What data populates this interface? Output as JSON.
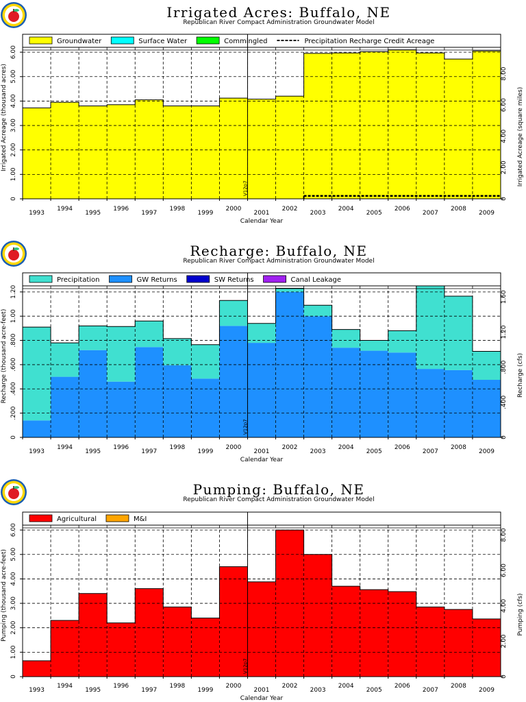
{
  "chart_data": [
    {
      "type": "bar",
      "title": "Irrigated Acres: Buffalo, NE",
      "subtitle": "Republican River Compact Administration Groundwater Model",
      "categories": [
        "1993",
        "1994",
        "1995",
        "1996",
        "1997",
        "1998",
        "1999",
        "2000",
        "2001",
        "2002",
        "2003",
        "2004",
        "2005",
        "2006",
        "2007",
        "2008",
        "2009"
      ],
      "xlabel": "Calendar Year",
      "ylabel": "Irrigated Acreage (thousand acres)",
      "ylabel_right": "Irrigated Acreage (square miles)",
      "ylim": [
        0,
        6.2
      ],
      "yticks": [
        "0",
        "1.00",
        "2.00",
        "3.00",
        "4.00",
        "5.00",
        "6.00"
      ],
      "ylim_right": [
        0,
        9.69
      ],
      "yticks_right": [
        "0",
        "2.00",
        "4.00",
        "6.00",
        "8.00"
      ],
      "stacked": true,
      "annotation": {
        "text": "V12p7",
        "at_x": 2000.5
      },
      "legend": [
        "Groundwater",
        "Surface Water",
        "Commingled",
        "Precipitation Recharge Credit Acreage"
      ],
      "series": [
        {
          "name": "Groundwater",
          "color": "#ffff00",
          "values": [
            3.72,
            3.95,
            3.8,
            3.85,
            4.05,
            3.8,
            3.8,
            4.12,
            4.08,
            4.2,
            5.95,
            5.97,
            6.02,
            6.1,
            5.97,
            5.72,
            6.05
          ]
        },
        {
          "name": "Surface Water",
          "color": "#00ffff",
          "values": [
            0,
            0,
            0,
            0,
            0,
            0,
            0,
            0,
            0,
            0,
            0,
            0,
            0,
            0,
            0,
            0,
            0
          ]
        },
        {
          "name": "Commingled",
          "color": "#00ff00",
          "values": [
            0,
            0,
            0,
            0,
            0,
            0,
            0,
            0,
            0,
            0,
            0,
            0,
            0,
            0,
            0,
            0,
            0
          ]
        }
      ],
      "line_series": {
        "name": "Precipitation Recharge Credit Acreage",
        "values": [
          0,
          0,
          0,
          0,
          0,
          0,
          0,
          0,
          0,
          0,
          0.12,
          0.12,
          0.12,
          0.12,
          0.12,
          0.12,
          0.12
        ]
      }
    },
    {
      "type": "bar",
      "title": "Recharge: Buffalo, NE",
      "subtitle": "Republican River Compact Administration Groundwater Model",
      "categories": [
        "1993",
        "1994",
        "1995",
        "1996",
        "1997",
        "1998",
        "1999",
        "2000",
        "2001",
        "2002",
        "2003",
        "2004",
        "2005",
        "2006",
        "2007",
        "2008",
        "2009"
      ],
      "xlabel": "Calendar Year",
      "ylabel": "Recharge (thousand acre-feet)",
      "ylabel_right": "Recharge (cfs)",
      "ylim": [
        0,
        1.25
      ],
      "yticks": [
        "0",
        ".200",
        ".400",
        ".600",
        ".800",
        "1.00",
        "1.20"
      ],
      "ylim_right": [
        0,
        1.727
      ],
      "yticks_right": [
        "0",
        ".400",
        ".800",
        "1.20",
        "1.60"
      ],
      "stacked": true,
      "annotation": {
        "text": "V12p7",
        "at_x": 2000.5
      },
      "legend": [
        "Precipitation",
        "GW Returns",
        "SW Returns",
        "Canal Leakage"
      ],
      "series": [
        {
          "name": "GW Returns",
          "color": "#1e90ff",
          "values": [
            0.14,
            0.5,
            0.72,
            0.46,
            0.745,
            0.595,
            0.485,
            0.92,
            0.78,
            1.2,
            1.0,
            0.74,
            0.715,
            0.7,
            0.565,
            0.555,
            0.475
          ]
        },
        {
          "name": "SW Returns",
          "color": "#0000cd",
          "values": [
            0,
            0,
            0,
            0,
            0,
            0,
            0,
            0,
            0,
            0,
            0,
            0,
            0,
            0,
            0,
            0,
            0
          ]
        },
        {
          "name": "Canal Leakage",
          "color": "#a020f0",
          "values": [
            0,
            0,
            0,
            0,
            0,
            0,
            0,
            0,
            0,
            0,
            0,
            0,
            0,
            0,
            0,
            0,
            0
          ]
        },
        {
          "name": "Precipitation",
          "color": "#40e0d0",
          "values": [
            0.77,
            0.28,
            0.2,
            0.455,
            0.215,
            0.22,
            0.28,
            0.21,
            0.16,
            0.03,
            0.09,
            0.15,
            0.085,
            0.18,
            0.685,
            0.61,
            0.235
          ]
        }
      ]
    },
    {
      "type": "bar",
      "title": "Pumping: Buffalo, NE",
      "subtitle": "Republican River Compact Administration Groundwater Model",
      "categories": [
        "1993",
        "1994",
        "1995",
        "1996",
        "1997",
        "1998",
        "1999",
        "2000",
        "2001",
        "2002",
        "2003",
        "2004",
        "2005",
        "2006",
        "2007",
        "2008",
        "2009"
      ],
      "xlabel": "Calendar Year",
      "ylabel": "Pumping (thousand acre-feet)",
      "ylabel_right": "Pumping (cfs)",
      "ylim": [
        0,
        6.2
      ],
      "yticks": [
        "0",
        "1.00",
        "2.00",
        "3.00",
        "4.00",
        "5.00",
        "6.00"
      ],
      "ylim_right": [
        0,
        8.56
      ],
      "yticks_right": [
        "0",
        "2.00",
        "4.00",
        "6.00",
        "8.00"
      ],
      "stacked": true,
      "annotation": {
        "text": "V12p7",
        "at_x": 2000.5
      },
      "legend": [
        "Agricultural",
        "M&I"
      ],
      "series": [
        {
          "name": "Agricultural",
          "color": "#ff0000",
          "values": [
            0.65,
            2.3,
            3.4,
            2.2,
            3.6,
            2.85,
            2.4,
            4.5,
            3.88,
            6.0,
            5.0,
            3.7,
            3.56,
            3.48,
            2.85,
            2.75,
            2.36
          ]
        },
        {
          "name": "M&I",
          "color": "#ffa500",
          "values": [
            0,
            0,
            0,
            0,
            0,
            0,
            0,
            0,
            0,
            0,
            0,
            0,
            0,
            0,
            0,
            0,
            0
          ]
        }
      ]
    }
  ]
}
